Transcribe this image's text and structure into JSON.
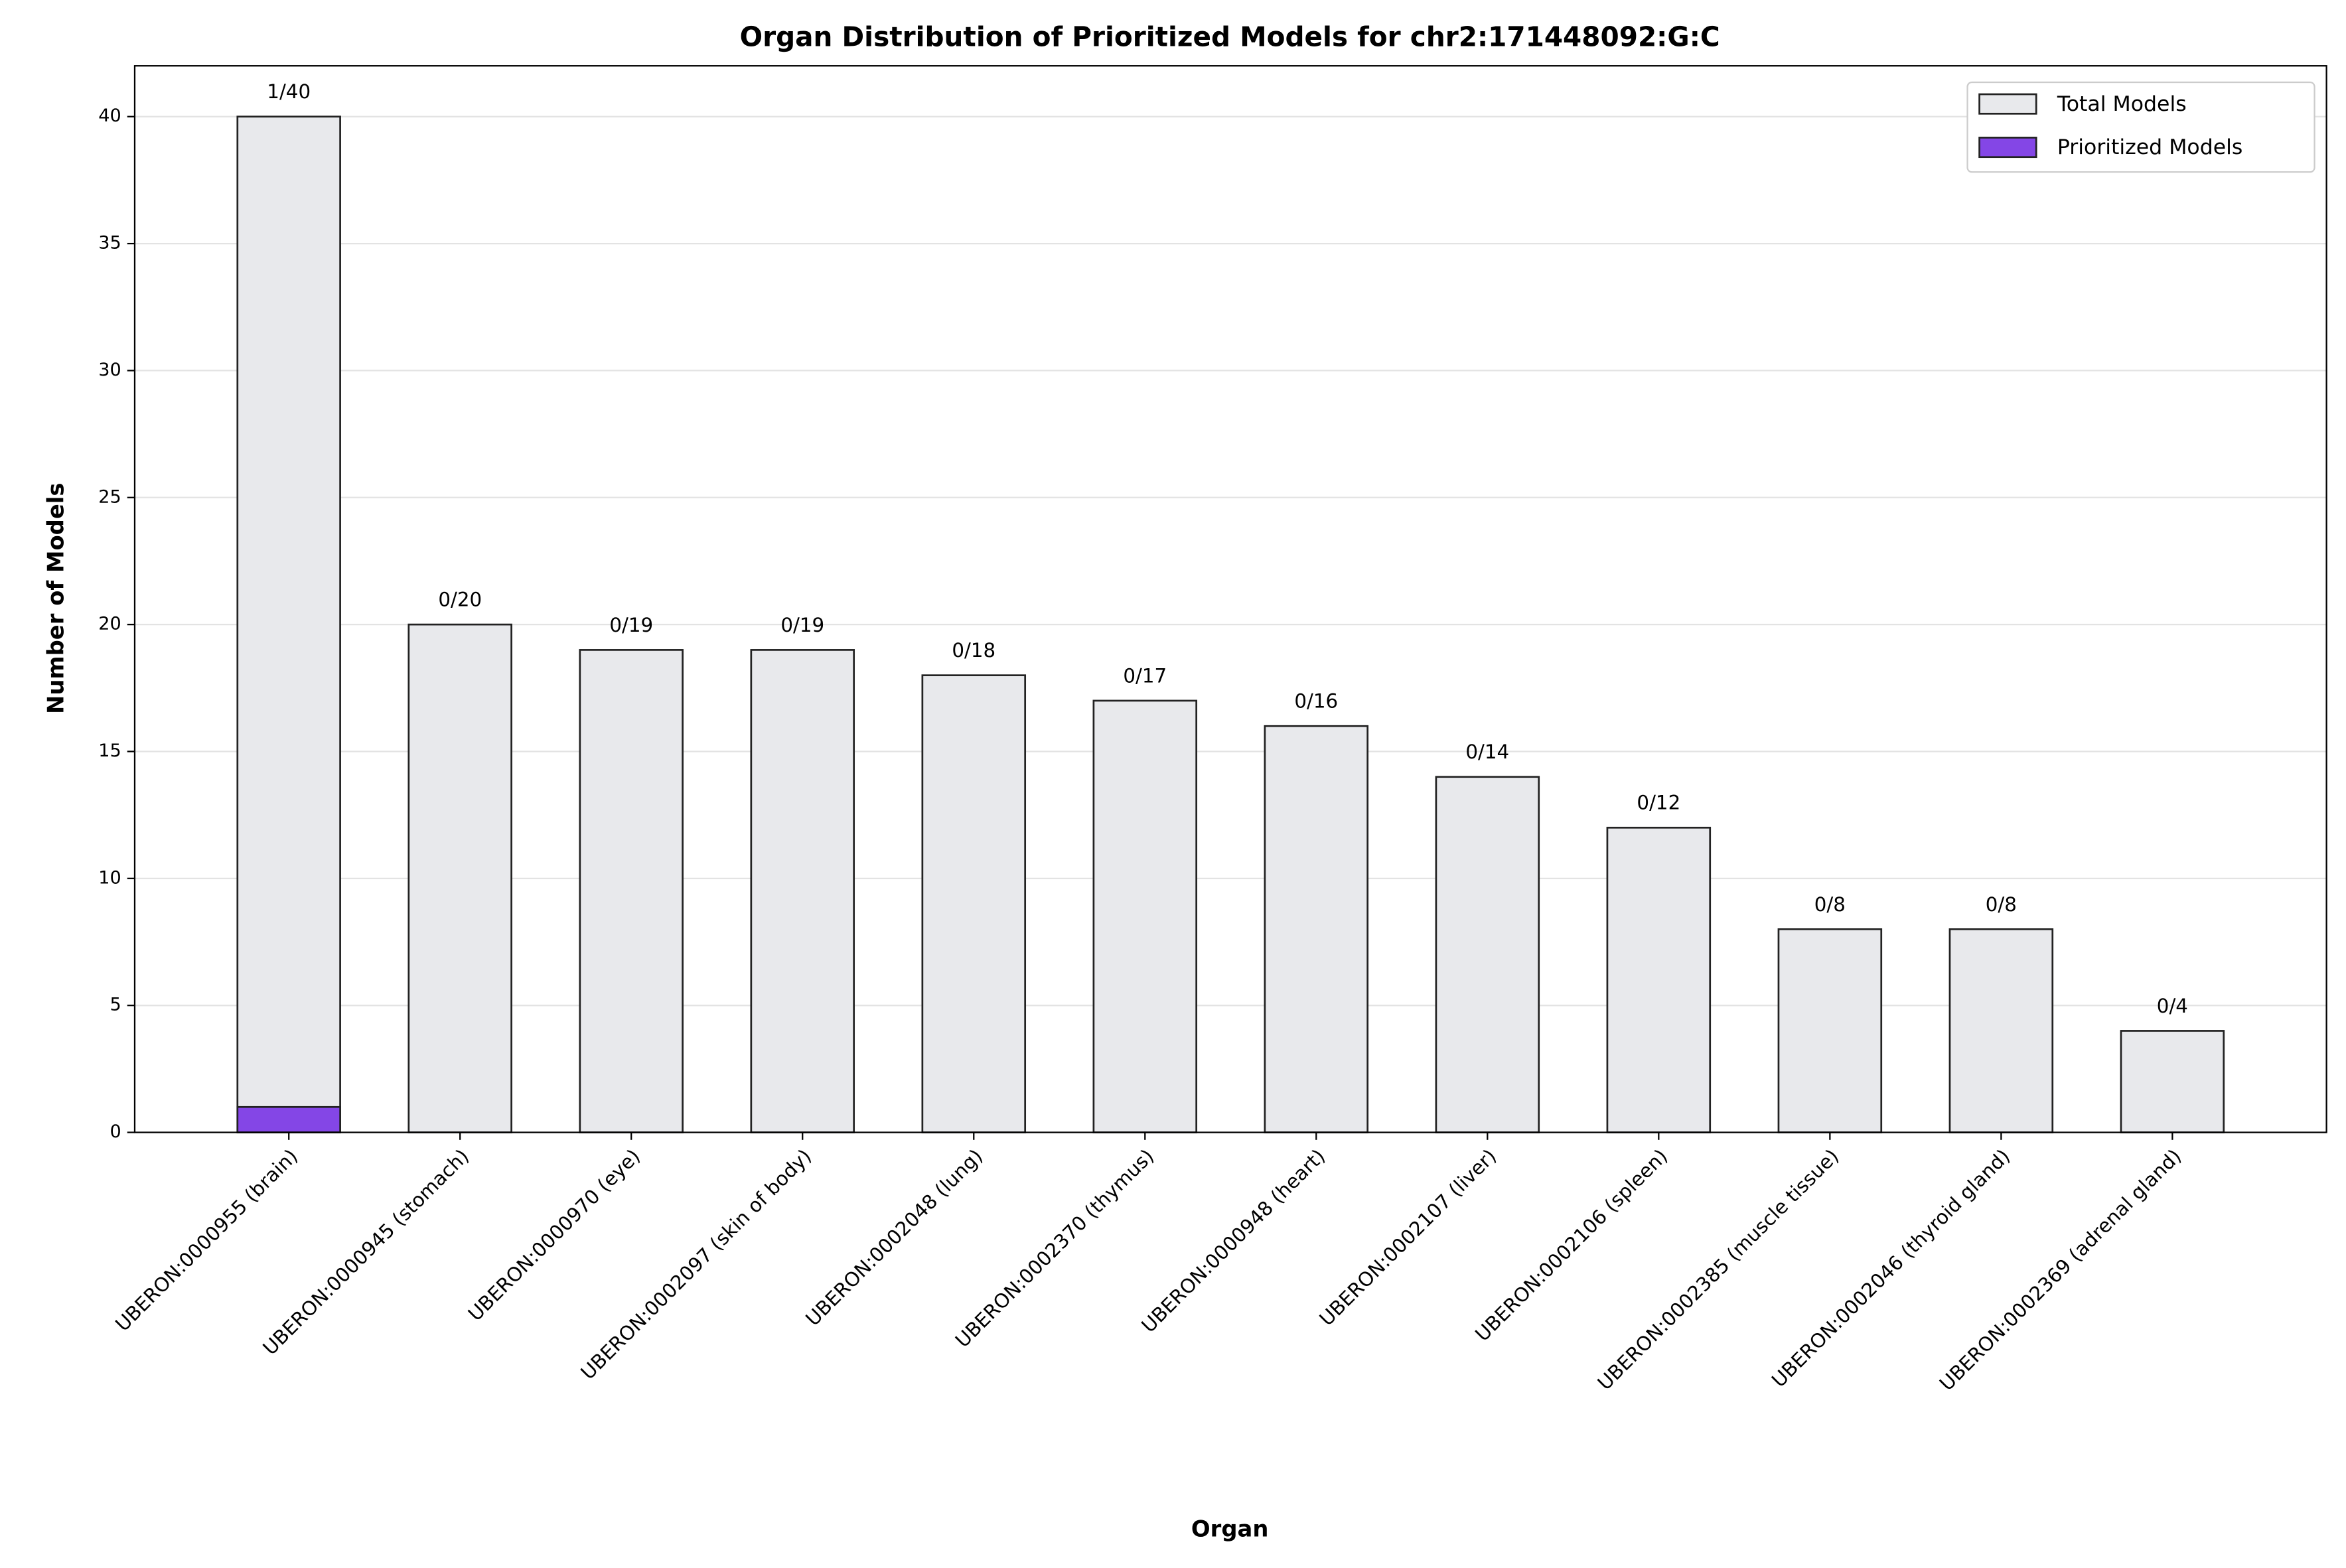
{
  "chart_data": {
    "type": "bar",
    "title": "Organ Distribution of Prioritized Models for chr2:171448092:G:C",
    "x_label": "Organ",
    "y_label": "Number of Models",
    "categories": [
      "UBERON:0000955 (brain)",
      "UBERON:0000945 (stomach)",
      "UBERON:0000970 (eye)",
      "UBERON:0002097 (skin of body)",
      "UBERON:0002048 (lung)",
      "UBERON:0002370 (thymus)",
      "UBERON:0000948 (heart)",
      "UBERON:0002107 (liver)",
      "UBERON:0002106 (spleen)",
      "UBERON:0002385 (muscle tissue)",
      "UBERON:0002046 (thyroid gland)",
      "UBERON:0002369 (adrenal gland)"
    ],
    "series": [
      {
        "name": "Total Models",
        "color": "#e8e9ec",
        "values": [
          40,
          20,
          19,
          19,
          18,
          17,
          16,
          14,
          12,
          8,
          8,
          4
        ],
        "value_labels": [
          "1/40",
          "0/20",
          "0/19",
          "0/19",
          "0/18",
          "0/17",
          "0/16",
          "0/14",
          "0/12",
          "0/8",
          "0/8",
          "0/4"
        ]
      },
      {
        "name": "Prioritized Models",
        "color": "#8446e6",
        "values": [
          1,
          0,
          0,
          0,
          0,
          0,
          0,
          0,
          0,
          0,
          0,
          0
        ]
      }
    ],
    "ylim": [
      0,
      42
    ],
    "yticks": [
      0,
      5,
      10,
      15,
      20,
      25,
      30,
      35,
      40
    ],
    "grid": true,
    "legend": "upper right"
  }
}
